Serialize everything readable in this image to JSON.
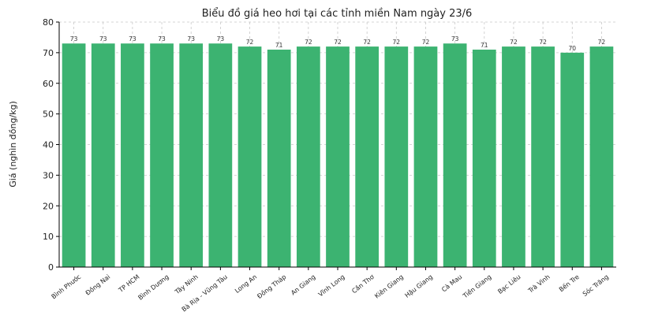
{
  "chart_data": {
    "type": "bar",
    "title": "Biểu đồ giá heo hơi tại các tỉnh miền Nam ngày 23/6",
    "xlabel": "",
    "ylabel": "Giá (nghìn đồng/kg)",
    "ylim": [
      0,
      80
    ],
    "yticks": [
      0,
      10,
      20,
      30,
      40,
      50,
      60,
      70,
      80
    ],
    "grid": true,
    "bar_color": "#3cb371",
    "categories": [
      "Bình Phước",
      "Đồng Nai",
      "TP HCM",
      "Bình Dương",
      "Tây Ninh",
      "Bà Rịa - Vũng Tàu",
      "Long An",
      "Đồng Tháp",
      "An Giang",
      "Vĩnh Long",
      "Cần Thơ",
      "Kiên Giang",
      "Hậu Giang",
      "Cà Mau",
      "Tiền Giang",
      "Bạc Liêu",
      "Trà Vinh",
      "Bến Tre",
      "Sóc Trăng"
    ],
    "values": [
      73,
      73,
      73,
      73,
      73,
      73,
      72,
      71,
      72,
      72,
      72,
      72,
      72,
      73,
      71,
      72,
      72,
      70,
      72
    ]
  }
}
